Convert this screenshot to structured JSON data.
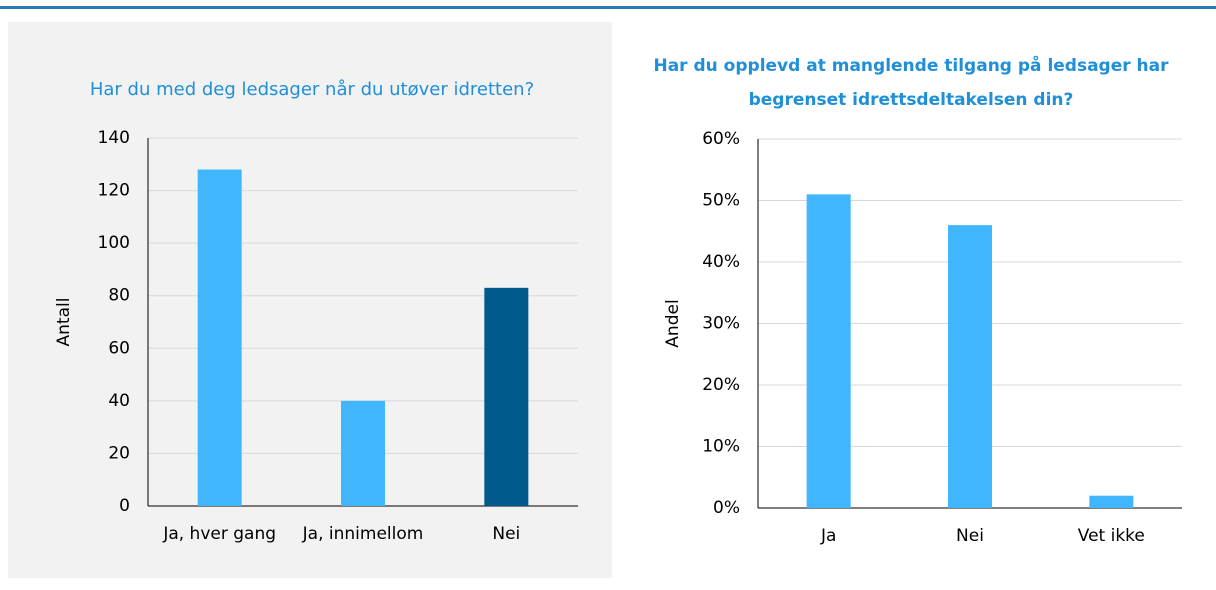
{
  "chart_data": [
    {
      "type": "bar",
      "title": [
        "Har du med deg ledsager når du utøver idretten?"
      ],
      "ylabel": "Antall",
      "categories": [
        "Ja, hver gang",
        "Ja, innimellom",
        "Nei"
      ],
      "values": [
        128,
        40,
        83
      ],
      "colors": [
        "#41b6ff",
        "#41b6ff",
        "#005a8c"
      ],
      "ylim": [
        0,
        140
      ],
      "yticks": [
        0,
        20,
        40,
        60,
        80,
        100,
        120,
        140
      ],
      "grid": true
    },
    {
      "type": "bar",
      "title": [
        "Har du opplevd at manglende tilgang på ledsager har",
        "begrenset idrettsdeltakelsen din?"
      ],
      "ylabel": "Andel",
      "categories": [
        "Ja",
        "Nei",
        "Vet ikke"
      ],
      "values": [
        51,
        46,
        2
      ],
      "colors": [
        "#41b6ff",
        "#41b6ff",
        "#41b6ff"
      ],
      "ylim": [
        0,
        60
      ],
      "yticks": [
        {
          "value": 0,
          "label": "0%"
        },
        {
          "value": 10,
          "label": "10%"
        },
        {
          "value": 20,
          "label": "20%"
        },
        {
          "value": 30,
          "label": "30%"
        },
        {
          "value": 40,
          "label": "40%"
        },
        {
          "value": 50,
          "label": "50%"
        },
        {
          "value": 60,
          "label": "60%"
        }
      ],
      "grid": true
    }
  ]
}
